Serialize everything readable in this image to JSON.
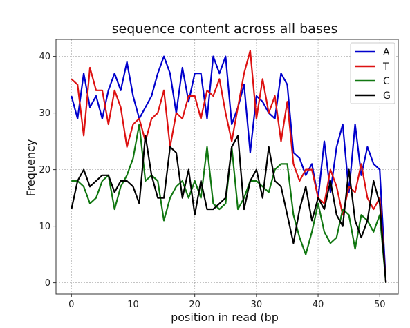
{
  "chart_data": {
    "type": "line",
    "title": "sequence content across all bases",
    "xlabel": "position in read (bp",
    "ylabel": "Frequency",
    "xlim": [
      -2.5,
      53
    ],
    "ylim": [
      -2,
      43
    ],
    "xticks": [
      0,
      10,
      20,
      30,
      40,
      50
    ],
    "yticks": [
      0,
      10,
      20,
      30,
      40
    ],
    "grid": true,
    "legend_position": "top-right",
    "x": [
      0,
      1,
      2,
      3,
      4,
      5,
      6,
      7,
      8,
      9,
      10,
      11,
      12,
      13,
      14,
      15,
      16,
      17,
      18,
      19,
      20,
      21,
      22,
      23,
      24,
      25,
      26,
      27,
      28,
      29,
      30,
      31,
      32,
      33,
      34,
      35,
      36,
      37,
      38,
      39,
      40,
      41,
      42,
      43,
      44,
      45,
      46,
      47,
      48,
      49,
      50,
      51
    ],
    "series": [
      {
        "name": "A",
        "color": "#0000cc",
        "values": [
          33,
          29,
          37,
          31,
          33,
          29,
          34,
          37,
          34,
          39,
          33,
          29,
          31,
          33,
          37,
          40,
          37,
          30,
          38,
          32,
          37,
          37,
          29,
          40,
          37,
          40,
          28,
          31,
          35,
          23,
          33,
          32,
          30,
          29,
          37,
          35,
          23,
          22,
          19,
          21,
          15,
          25,
          16,
          24,
          28,
          16,
          28,
          19,
          24,
          21,
          20,
          0
        ]
      },
      {
        "name": "T",
        "color": "#dd1111",
        "values": [
          36,
          35,
          26,
          38,
          34,
          34,
          28,
          34,
          31,
          24,
          28,
          29,
          25,
          29,
          30,
          34,
          24,
          30,
          29,
          33,
          33,
          29,
          34,
          33,
          36,
          30,
          25,
          31,
          37,
          41,
          29,
          36,
          30,
          33,
          25,
          32,
          21,
          18,
          20,
          20,
          15,
          14,
          20,
          17,
          12,
          17,
          16,
          21,
          15,
          13,
          15,
          0
        ]
      },
      {
        "name": "C",
        "color": "#117711",
        "values": [
          18,
          18,
          17,
          14,
          15,
          18,
          19,
          13,
          17,
          19,
          22,
          28,
          18,
          19,
          18,
          11,
          15,
          17,
          18,
          15,
          18,
          15,
          24,
          14,
          13,
          14,
          24,
          13,
          15,
          18,
          18,
          17,
          16,
          20,
          21,
          21,
          12,
          8,
          5,
          9,
          14,
          9,
          7,
          8,
          13,
          12,
          6,
          12,
          11,
          9,
          12,
          0
        ]
      },
      {
        "name": "G",
        "color": "#000000",
        "values": [
          13,
          18,
          20,
          17,
          18,
          19,
          19,
          16,
          18,
          18,
          17,
          14,
          26,
          19,
          15,
          15,
          24,
          23,
          15,
          20,
          12,
          18,
          13,
          13,
          14,
          15,
          24,
          26,
          13,
          18,
          20,
          15,
          24,
          18,
          17,
          12,
          7,
          13,
          17,
          11,
          15,
          13,
          18,
          12,
          10,
          20,
          11,
          8,
          11,
          18,
          14,
          0
        ]
      }
    ]
  }
}
